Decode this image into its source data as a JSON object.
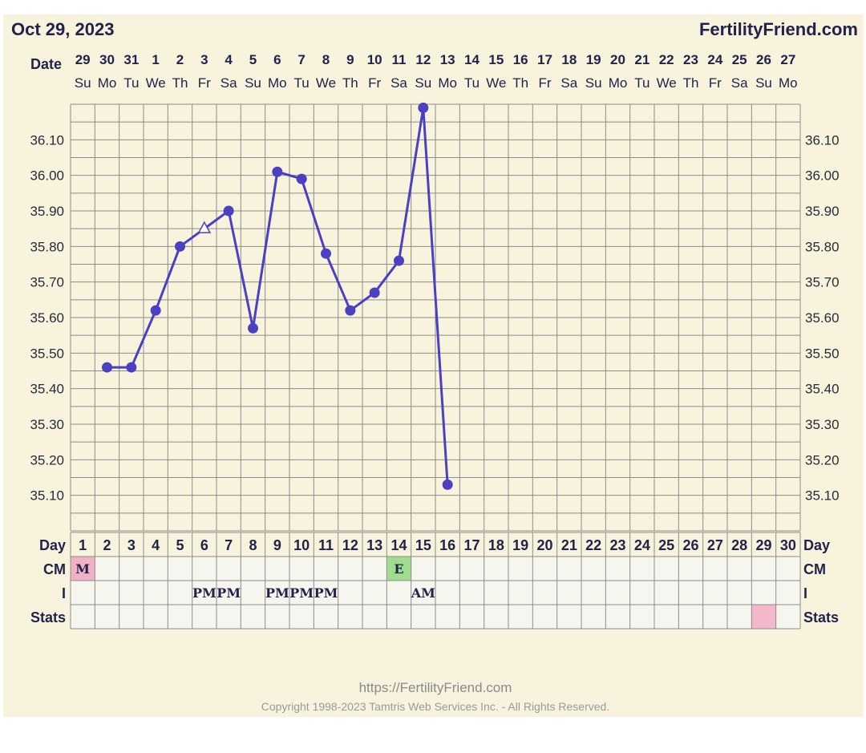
{
  "header": {
    "date_title": "Oct 29, 2023",
    "site_name": "FertilityFriend.com",
    "date_row_label": "Date"
  },
  "dates": [
    "29",
    "30",
    "31",
    "1",
    "2",
    "3",
    "4",
    "5",
    "6",
    "7",
    "8",
    "9",
    "10",
    "11",
    "12",
    "13",
    "14",
    "15",
    "16",
    "17",
    "18",
    "19",
    "20",
    "21",
    "22",
    "23",
    "24",
    "25",
    "26",
    "27"
  ],
  "weekdays": [
    "Su",
    "Mo",
    "Tu",
    "We",
    "Th",
    "Fr",
    "Sa",
    "Su",
    "Mo",
    "Tu",
    "We",
    "Th",
    "Fr",
    "Sa",
    "Su",
    "Mo",
    "Tu",
    "We",
    "Th",
    "Fr",
    "Sa",
    "Su",
    "Mo",
    "Tu",
    "We",
    "Th",
    "Fr",
    "Sa",
    "Su",
    "Mo"
  ],
  "chart_data": {
    "type": "line",
    "x_label": "Day",
    "y_ticks": [
      "35.10",
      "35.20",
      "35.30",
      "35.40",
      "35.50",
      "35.60",
      "35.70",
      "35.80",
      "35.90",
      "36.00",
      "36.10"
    ],
    "ylim": [
      35.0,
      36.2
    ],
    "grid": true,
    "series": [
      {
        "values": [
          null,
          35.46,
          35.46,
          35.62,
          35.8,
          35.85,
          35.9,
          35.57,
          36.01,
          35.99,
          35.78,
          35.62,
          35.67,
          35.76,
          36.19,
          35.13
        ],
        "open_markers_on_days": [
          6
        ]
      }
    ],
    "line_color": "#4b3fc2"
  },
  "table": {
    "labels": {
      "day": "Day",
      "cm": "CM",
      "i": "I",
      "stats": "Stats"
    },
    "days": [
      "1",
      "2",
      "3",
      "4",
      "5",
      "6",
      "7",
      "8",
      "9",
      "10",
      "11",
      "12",
      "13",
      "14",
      "15",
      "16",
      "17",
      "18",
      "19",
      "20",
      "21",
      "22",
      "23",
      "24",
      "25",
      "26",
      "27",
      "28",
      "29",
      "30"
    ],
    "cm_cells": [
      {
        "day": 1,
        "text": "M",
        "color": "#f0b3c6"
      },
      {
        "day": 14,
        "text": "E",
        "color": "#9fdc8f"
      }
    ],
    "i_cells": [
      {
        "day": 6,
        "text": "PM"
      },
      {
        "day": 7,
        "text": "PM"
      },
      {
        "day": 9,
        "text": "PM"
      },
      {
        "day": 10,
        "text": "PM"
      },
      {
        "day": 11,
        "text": "PM"
      },
      {
        "day": 15,
        "text": "AM"
      }
    ],
    "stats_cells": [
      {
        "day": 29,
        "color": "#f3b9ca"
      }
    ]
  },
  "footer": {
    "url": "https://FertilityFriend.com",
    "copyright": "Copyright 1998-2023 Tamtris Web Services Inc. - All Rights Reserved."
  },
  "colors": {
    "panel_bg": "#f7f3dc",
    "grid": "#8c8c8c",
    "line": "#4b3fc2",
    "text": "#22224a",
    "table_cell_bg": "#f6f6ee"
  }
}
